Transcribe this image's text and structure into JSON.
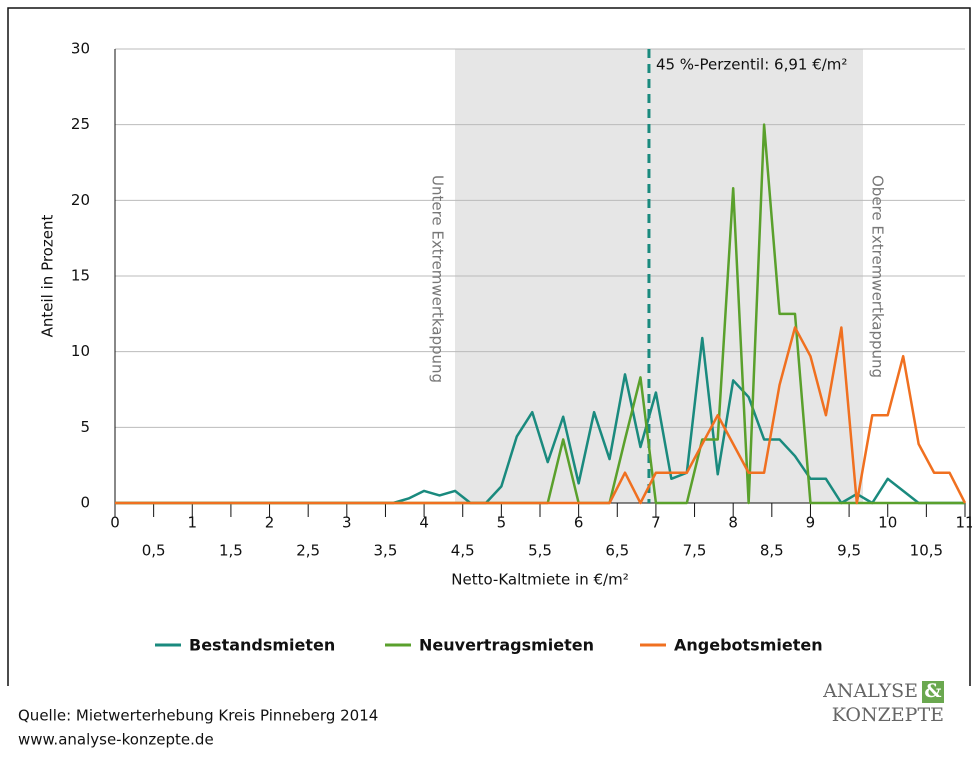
{
  "chart_data": {
    "type": "line",
    "x_label": "Netto-Kaltmiete in €/m²",
    "y_label": "Anteil in Prozent",
    "x": [
      0,
      0.2,
      0.4,
      0.6,
      0.8,
      1,
      1.2,
      1.4,
      1.6,
      1.8,
      2,
      2.2,
      2.4,
      2.6,
      2.8,
      3,
      3.2,
      3.4,
      3.6,
      3.8,
      4,
      4.2,
      4.4,
      4.6,
      4.8,
      5,
      5.2,
      5.4,
      5.6,
      5.8,
      6,
      6.2,
      6.4,
      6.6,
      6.8,
      7,
      7.2,
      7.4,
      7.6,
      7.8,
      8,
      8.2,
      8.4,
      8.6,
      8.8,
      9,
      9.2,
      9.4,
      9.6,
      9.8,
      10,
      10.2,
      10.4,
      10.6,
      10.8,
      11
    ],
    "series": [
      {
        "name": "Bestandsmieten",
        "color": "#1a8a7e",
        "values": [
          0,
          0,
          0,
          0,
          0,
          0,
          0,
          0,
          0,
          0,
          0,
          0,
          0,
          0,
          0,
          0,
          0,
          0,
          0,
          0.3,
          0.8,
          0.5,
          0.8,
          0,
          0,
          1.1,
          4.4,
          6.0,
          2.7,
          5.7,
          1.3,
          6.0,
          2.9,
          8.5,
          3.7,
          7.3,
          1.6,
          2.0,
          10.9,
          1.9,
          8.1,
          7.0,
          4.2,
          4.2,
          3.1,
          1.6,
          1.6,
          0,
          0.6,
          0,
          1.6,
          0.8,
          0,
          0,
          0,
          0
        ]
      },
      {
        "name": "Neuvertragsmieten",
        "color": "#5aa02c",
        "values": [
          0,
          0,
          0,
          0,
          0,
          0,
          0,
          0,
          0,
          0,
          0,
          0,
          0,
          0,
          0,
          0,
          0,
          0,
          0,
          0,
          0,
          0,
          0,
          0,
          0,
          0,
          0,
          0,
          0,
          4.2,
          0,
          0,
          0,
          4.2,
          8.3,
          0,
          0,
          0,
          4.2,
          4.2,
          20.8,
          0,
          25,
          12.5,
          12.5,
          0,
          0,
          0,
          0,
          0,
          0,
          0,
          0,
          0,
          0,
          0
        ]
      },
      {
        "name": "Angebotsmieten",
        "color": "#f07020",
        "values": [
          0,
          0,
          0,
          0,
          0,
          0,
          0,
          0,
          0,
          0,
          0,
          0,
          0,
          0,
          0,
          0,
          0,
          0,
          0,
          0,
          0,
          0,
          0,
          0,
          0,
          0,
          0,
          0,
          0,
          0,
          0,
          0,
          0,
          2.0,
          0,
          2.0,
          2.0,
          2.0,
          3.9,
          5.8,
          3.9,
          2.0,
          2.0,
          7.8,
          11.6,
          9.7,
          5.8,
          11.6,
          0,
          5.8,
          5.8,
          9.7,
          3.9,
          2.0,
          2.0,
          0
        ]
      }
    ],
    "xlim": [
      0,
      11
    ],
    "xticks": [
      0,
      1,
      2,
      3,
      4,
      5,
      6,
      7,
      8,
      9,
      10,
      11,
      {
        "value": 0.5,
        "label": "0,5"
      },
      {
        "value": 1.5,
        "label": "1,5"
      },
      {
        "value": 2.5,
        "label": "2,5"
      },
      {
        "value": 3.5,
        "label": "3,5"
      },
      {
        "value": 4.5,
        "label": "4,5"
      },
      {
        "value": 5.5,
        "label": "5,5"
      },
      {
        "value": 6.5,
        "label": "6,5"
      },
      {
        "value": 7.5,
        "label": "7,5"
      },
      {
        "value": 8.5,
        "label": "8,5"
      },
      {
        "value": 9.5,
        "label": "9,5"
      },
      {
        "value": 10.5,
        "label": "10,5"
      }
    ],
    "ylim": [
      0,
      30
    ],
    "yticks": [
      0,
      5,
      10,
      15,
      20,
      25,
      30
    ],
    "grid": true,
    "shaded_range": [
      4.4,
      9.68
    ],
    "shaded_range_labels": [
      "Untere Extremwertkappung",
      "Obere Extremwertkappung"
    ],
    "reference_line": {
      "value": 6.91,
      "color": "#1a8a7e",
      "label": "45 %-Perzentil: 6,91 €/m²"
    },
    "legend": "bottom"
  },
  "footer": {
    "source": "Quelle: Mietwerterhebung Kreis Pinneberg 2014",
    "url": "www.analyse-konzepte.de",
    "logo": [
      "ANALYSE",
      "&",
      "KONZEPTE"
    ]
  }
}
